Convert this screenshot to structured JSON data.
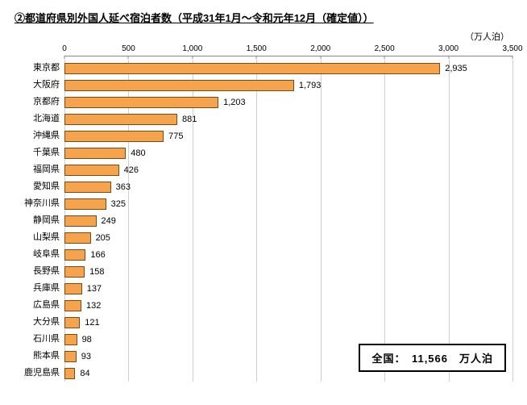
{
  "title": "②都道府県別外国人延べ宿泊者数（平成31年1月～令和元年12月（確定値））",
  "unit_label": "（万人泊）",
  "total_label": "全国：　11,566　万人泊",
  "chart": {
    "type": "bar-horizontal",
    "x_min": 0,
    "x_max": 3500,
    "tick_step": 500,
    "ticks": [
      "0",
      "500",
      "1,000",
      "1,500",
      "2,000",
      "2,500",
      "3,000",
      "3,500"
    ],
    "bar_color": "#f5a34d",
    "bar_border_color": "#7a4a12",
    "grid_color": "#cfcfcf",
    "axis_color": "#888888",
    "background_color": "#ffffff",
    "label_fontsize": 11,
    "tick_fontsize": 10,
    "title_fontsize": 13,
    "bars": [
      {
        "label": "東京都",
        "value": 2935,
        "display": "2,935"
      },
      {
        "label": "大阪府",
        "value": 1793,
        "display": "1,793"
      },
      {
        "label": "京都府",
        "value": 1203,
        "display": "1,203"
      },
      {
        "label": "北海道",
        "value": 881,
        "display": "881"
      },
      {
        "label": "沖縄県",
        "value": 775,
        "display": "775"
      },
      {
        "label": "千葉県",
        "value": 480,
        "display": "480"
      },
      {
        "label": "福岡県",
        "value": 426,
        "display": "426"
      },
      {
        "label": "愛知県",
        "value": 363,
        "display": "363"
      },
      {
        "label": "神奈川県",
        "value": 325,
        "display": "325"
      },
      {
        "label": "静岡県",
        "value": 249,
        "display": "249"
      },
      {
        "label": "山梨県",
        "value": 205,
        "display": "205"
      },
      {
        "label": "岐阜県",
        "value": 166,
        "display": "166"
      },
      {
        "label": "長野県",
        "value": 158,
        "display": "158"
      },
      {
        "label": "兵庫県",
        "value": 137,
        "display": "137"
      },
      {
        "label": "広島県",
        "value": 132,
        "display": "132"
      },
      {
        "label": "大分県",
        "value": 121,
        "display": "121"
      },
      {
        "label": "石川県",
        "value": 98,
        "display": "98"
      },
      {
        "label": "熊本県",
        "value": 93,
        "display": "93"
      },
      {
        "label": "鹿児島県",
        "value": 84,
        "display": "84"
      }
    ]
  }
}
